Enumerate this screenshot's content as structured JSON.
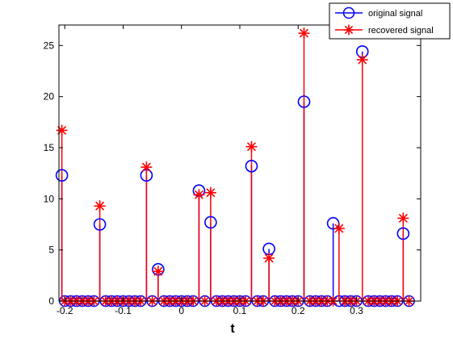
{
  "chart_data": {
    "type": "stem",
    "xlabel": "t",
    "ylabel": "",
    "title": "",
    "xlim": [
      -0.21,
      0.41
    ],
    "ylim": [
      0,
      27
    ],
    "xticks": [
      -0.2,
      -0.1,
      0,
      0.1,
      0.2,
      0.3
    ],
    "xtick_labels": [
      "-0.2",
      "-0.1",
      "0",
      "0.1",
      "0.2",
      "0.3"
    ],
    "yticks": [
      0,
      5,
      10,
      15,
      20,
      25
    ],
    "ytick_labels": [
      "0",
      "5",
      "10",
      "15",
      "20",
      "25"
    ],
    "grid": false,
    "legend_position": "top-right",
    "sample_spacing": 0.01,
    "series": [
      {
        "name": "original signal",
        "color": "#0000ff",
        "marker": "circle",
        "points": [
          {
            "x": -0.205,
            "y": 12.3
          },
          {
            "x": -0.14,
            "y": 7.5
          },
          {
            "x": -0.06,
            "y": 12.3
          },
          {
            "x": -0.04,
            "y": 3.1
          },
          {
            "x": 0.03,
            "y": 10.8
          },
          {
            "x": 0.05,
            "y": 7.7
          },
          {
            "x": 0.12,
            "y": 13.2
          },
          {
            "x": 0.15,
            "y": 5.1
          },
          {
            "x": 0.21,
            "y": 19.5
          },
          {
            "x": 0.26,
            "y": 7.6
          },
          {
            "x": 0.31,
            "y": 24.4
          },
          {
            "x": 0.38,
            "y": 6.6
          }
        ]
      },
      {
        "name": "recovered signal",
        "color": "#ff0000",
        "marker": "asterisk",
        "points": [
          {
            "x": -0.205,
            "y": 16.7
          },
          {
            "x": -0.14,
            "y": 9.3
          },
          {
            "x": -0.06,
            "y": 13.1
          },
          {
            "x": -0.04,
            "y": 2.9
          },
          {
            "x": 0.03,
            "y": 10.4
          },
          {
            "x": 0.05,
            "y": 10.6
          },
          {
            "x": 0.12,
            "y": 15.1
          },
          {
            "x": 0.15,
            "y": 4.2
          },
          {
            "x": 0.21,
            "y": 26.2
          },
          {
            "x": 0.27,
            "y": 7.1
          },
          {
            "x": 0.31,
            "y": 23.6
          },
          {
            "x": 0.38,
            "y": 8.1
          }
        ]
      }
    ]
  }
}
